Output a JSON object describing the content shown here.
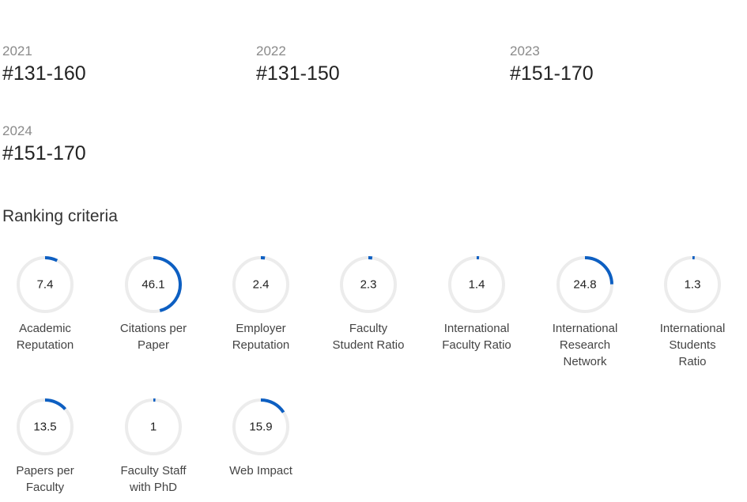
{
  "rankings": [
    {
      "year": "2021",
      "rank": "#131-160"
    },
    {
      "year": "2022",
      "rank": "#131-150"
    },
    {
      "year": "2023",
      "rank": "#151-170"
    },
    {
      "year": "2024",
      "rank": "#151-170"
    }
  ],
  "criteria_title": "Ranking criteria",
  "accent_color": "#0d5fc2",
  "track_color": "#ececec",
  "criteria": [
    {
      "score": "7.4",
      "value": 7.4,
      "label": "Academic\nReputation"
    },
    {
      "score": "46.1",
      "value": 46.1,
      "label": "Citations per\nPaper"
    },
    {
      "score": "2.4",
      "value": 2.4,
      "label": "Employer\nReputation"
    },
    {
      "score": "2.3",
      "value": 2.3,
      "label": "Faculty\nStudent Ratio"
    },
    {
      "score": "1.4",
      "value": 1.4,
      "label": "International\nFaculty Ratio"
    },
    {
      "score": "24.8",
      "value": 24.8,
      "label": "International\nResearch\nNetwork"
    },
    {
      "score": "1.3",
      "value": 1.3,
      "label": "International\nStudents\nRatio"
    },
    {
      "score": "13.5",
      "value": 13.5,
      "label": "Papers per\nFaculty"
    },
    {
      "score": "1",
      "value": 1,
      "label": "Faculty Staff\nwith PhD"
    },
    {
      "score": "15.9",
      "value": 15.9,
      "label": "Web Impact"
    }
  ]
}
